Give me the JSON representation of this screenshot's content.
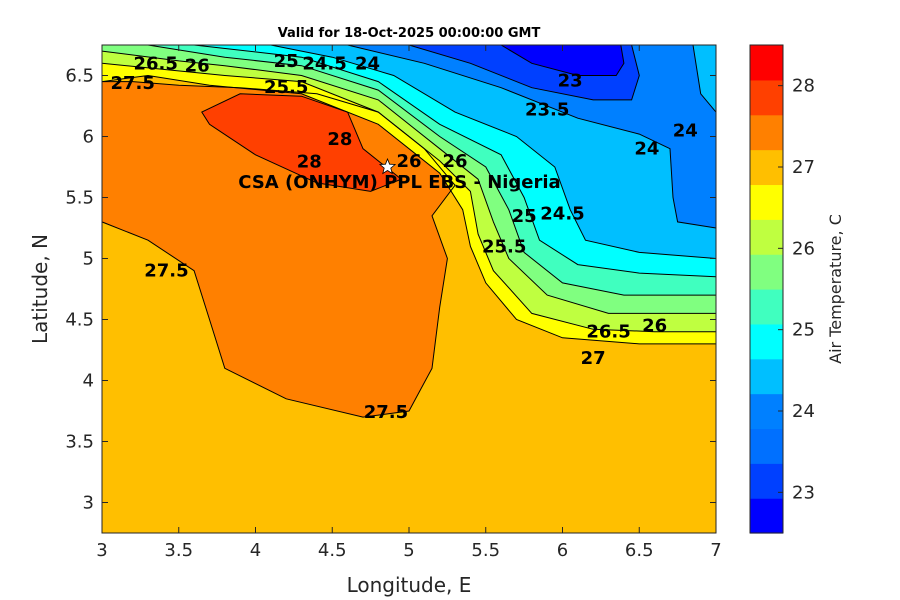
{
  "chart_data": {
    "type": "contour",
    "title": "Valid for 18-Oct-2025 00:00:00 GMT",
    "xlabel": "Longitude, E",
    "ylabel": "Latitude, N",
    "xlim": [
      3,
      7
    ],
    "ylim": [
      2.75,
      6.75
    ],
    "xticks": [
      "3",
      "3.5",
      "4",
      "4.5",
      "5",
      "5.5",
      "6",
      "6.5",
      "7"
    ],
    "yticks": [
      "3",
      "3.5",
      "4",
      "4.5",
      "5",
      "5.5",
      "6",
      "6.5"
    ],
    "colorbar": {
      "label": "Air Temperature, C",
      "range": [
        22.5,
        28.5
      ],
      "ticks": [
        "23",
        "24",
        "25",
        "26",
        "27",
        "28"
      ],
      "colors": [
        "#0000ff",
        "#0040ff",
        "#0070ff",
        "#0080ff",
        "#00bfff",
        "#00ffff",
        "#40ffbf",
        "#80ff80",
        "#bfff40",
        "#ffff00",
        "#ffbf00",
        "#ff8000",
        "#ff4000",
        "#ff0000"
      ]
    },
    "base_color": "#ffbf00",
    "regions": [
      {
        "level": 27.5,
        "color": "#ff8000",
        "closed": true,
        "points": [
          [
            3,
            6.45
          ],
          [
            3,
            5.3
          ],
          [
            3.3,
            5.15
          ],
          [
            3.6,
            4.9
          ],
          [
            3.7,
            4.5
          ],
          [
            3.8,
            4.1
          ],
          [
            4.2,
            3.85
          ],
          [
            4.7,
            3.7
          ],
          [
            5,
            3.75
          ],
          [
            5.15,
            4.1
          ],
          [
            5.2,
            4.6
          ],
          [
            5.25,
            5.0
          ],
          [
            5.15,
            5.35
          ],
          [
            5.3,
            5.6
          ],
          [
            5.1,
            5.9
          ],
          [
            4.8,
            6.2
          ],
          [
            4.4,
            6.35
          ],
          [
            3.9,
            6.4
          ],
          [
            3.5,
            6.42
          ],
          [
            3.2,
            6.45
          ]
        ]
      },
      {
        "level": 28,
        "color": "#ff4000",
        "closed": true,
        "points": [
          [
            3.65,
            6.2
          ],
          [
            3.9,
            6.35
          ],
          [
            4.3,
            6.33
          ],
          [
            4.6,
            6.2
          ],
          [
            4.7,
            5.9
          ],
          [
            4.95,
            5.65
          ],
          [
            4.75,
            5.55
          ],
          [
            4.4,
            5.62
          ],
          [
            4.0,
            5.85
          ],
          [
            3.7,
            6.1
          ]
        ]
      },
      {
        "level": 27,
        "color": "#ffff00",
        "closed": false,
        "points": [
          [
            3,
            6.45
          ],
          [
            3.3,
            6.5
          ],
          [
            3.7,
            6.42
          ],
          [
            4.3,
            6.35
          ],
          [
            4.8,
            6.1
          ],
          [
            5.2,
            5.7
          ],
          [
            5.35,
            5.4
          ],
          [
            5.4,
            5.1
          ],
          [
            5.5,
            4.8
          ],
          [
            5.7,
            4.5
          ],
          [
            6.0,
            4.35
          ],
          [
            6.5,
            4.3
          ],
          [
            7,
            4.3
          ]
        ]
      },
      {
        "level": 26.5,
        "color": "#bfff40",
        "closed": false,
        "points": [
          [
            3,
            6.6
          ],
          [
            3.4,
            6.55
          ],
          [
            3.8,
            6.5
          ],
          [
            4.3,
            6.45
          ],
          [
            4.8,
            6.2
          ],
          [
            5.2,
            5.8
          ],
          [
            5.4,
            5.55
          ],
          [
            5.45,
            5.2
          ],
          [
            5.55,
            4.9
          ],
          [
            5.8,
            4.55
          ],
          [
            6.2,
            4.42
          ],
          [
            6.6,
            4.4
          ],
          [
            7,
            4.4
          ]
        ]
      },
      {
        "level": 26,
        "color": "#80ff80",
        "closed": false,
        "points": [
          [
            3,
            6.7
          ],
          [
            3.5,
            6.62
          ],
          [
            3.8,
            6.58
          ],
          [
            4.3,
            6.5
          ],
          [
            4.8,
            6.3
          ],
          [
            5.2,
            5.9
          ],
          [
            5.45,
            5.65
          ],
          [
            5.55,
            5.3
          ],
          [
            5.65,
            5.0
          ],
          [
            5.9,
            4.7
          ],
          [
            6.3,
            4.55
          ],
          [
            7,
            4.55
          ]
        ]
      },
      {
        "level": 25.5,
        "color": "#40ffbf",
        "closed": false,
        "points": [
          [
            3.3,
            6.75
          ],
          [
            3.8,
            6.65
          ],
          [
            4.3,
            6.58
          ],
          [
            4.8,
            6.38
          ],
          [
            5.2,
            6.0
          ],
          [
            5.5,
            5.75
          ],
          [
            5.65,
            5.4
          ],
          [
            5.75,
            5.05
          ],
          [
            6.0,
            4.8
          ],
          [
            6.4,
            4.7
          ],
          [
            7,
            4.7
          ]
        ]
      },
      {
        "level": 25,
        "color": "#00ffff",
        "closed": false,
        "points": [
          [
            3.6,
            6.75
          ],
          [
            4.3,
            6.65
          ],
          [
            4.8,
            6.45
          ],
          [
            5.2,
            6.1
          ],
          [
            5.6,
            5.85
          ],
          [
            5.75,
            5.5
          ],
          [
            5.85,
            5.15
          ],
          [
            6.1,
            4.95
          ],
          [
            6.5,
            4.88
          ],
          [
            7,
            4.85
          ]
        ]
      },
      {
        "level": 24.5,
        "color": "#00bfff",
        "closed": false,
        "points": [
          [
            4.1,
            6.75
          ],
          [
            4.5,
            6.65
          ],
          [
            4.9,
            6.5
          ],
          [
            5.3,
            6.2
          ],
          [
            5.7,
            6.0
          ],
          [
            5.95,
            5.75
          ],
          [
            6.05,
            5.4
          ],
          [
            6.15,
            5.15
          ],
          [
            6.5,
            5.05
          ],
          [
            7,
            5.0
          ]
        ]
      },
      {
        "level": 24,
        "color": "#0080ff",
        "closed": true,
        "points": [
          [
            4.6,
            6.75
          ],
          [
            5.1,
            6.6
          ],
          [
            5.6,
            6.4
          ],
          [
            6.1,
            6.15
          ],
          [
            6.5,
            6.02
          ],
          [
            6.7,
            5.9
          ],
          [
            6.72,
            5.5
          ],
          [
            6.75,
            5.3
          ],
          [
            7,
            5.25
          ],
          [
            7,
            6.2
          ],
          [
            6.9,
            6.35
          ],
          [
            6.85,
            6.75
          ]
        ]
      },
      {
        "level": 23.5,
        "color": "#0040ff",
        "closed": true,
        "points": [
          [
            5.0,
            6.75
          ],
          [
            5.4,
            6.6
          ],
          [
            5.8,
            6.4
          ],
          [
            6.2,
            6.3
          ],
          [
            6.45,
            6.3
          ],
          [
            6.5,
            6.5
          ],
          [
            6.45,
            6.75
          ]
        ]
      },
      {
        "level": 23,
        "color": "#0000ff",
        "closed": true,
        "points": [
          [
            5.6,
            6.75
          ],
          [
            5.8,
            6.6
          ],
          [
            6.1,
            6.5
          ],
          [
            6.35,
            6.5
          ],
          [
            6.4,
            6.6
          ],
          [
            6.38,
            6.75
          ]
        ]
      }
    ],
    "contour_labels": [
      {
        "text": "26.5",
        "lon": 3.35,
        "lat": 6.6
      },
      {
        "text": "26",
        "lon": 3.62,
        "lat": 6.58
      },
      {
        "text": "27.5",
        "lon": 3.2,
        "lat": 6.44
      },
      {
        "text": "25",
        "lon": 4.2,
        "lat": 6.62
      },
      {
        "text": "24.5",
        "lon": 4.45,
        "lat": 6.6
      },
      {
        "text": "25.5",
        "lon": 4.2,
        "lat": 6.52
      },
      {
        "text": "24",
        "lon": 4.73,
        "lat": 6.6
      },
      {
        "text": "23",
        "lon": 6.05,
        "lat": 6.46
      },
      {
        "text": "23.5",
        "lon": 5.9,
        "lat": 6.22
      },
      {
        "text": "24",
        "lon": 6.8,
        "lat": 6.05
      },
      {
        "text": "24",
        "lon": 6.55,
        "lat": 5.9
      },
      {
        "text": "24.5",
        "lon": 6.0,
        "lat": 5.55
      },
      {
        "text": "28",
        "lon": 4.55,
        "lat": 5.98
      },
      {
        "text": "28",
        "lon": 4.35,
        "lat": 5.6
      },
      {
        "text": "26",
        "lon": 5.0,
        "lat": 5.8
      },
      {
        "text": "26",
        "lon": 5.3,
        "lat": 5.7
      },
      {
        "text": "25",
        "lon": 5.75,
        "lat": 5.35
      },
      {
        "text": "25.5",
        "lon": 5.62,
        "lat": 5.1
      },
      {
        "text": "27.5",
        "lon": 3.42,
        "lat": 4.9
      },
      {
        "text": "27.5",
        "lon": 4.85,
        "lat": 3.74
      },
      {
        "text": "26",
        "lon": 6.6,
        "lat": 4.45
      },
      {
        "text": "26.5",
        "lon": 6.3,
        "lat": 4.4
      },
      {
        "text": "27",
        "lon": 6.2,
        "lat": 4.3
      }
    ],
    "station": {
      "name": "CSA (ONHYM) PPL EBS - Nigeria",
      "lon": 4.86,
      "lat": 5.75
    }
  }
}
